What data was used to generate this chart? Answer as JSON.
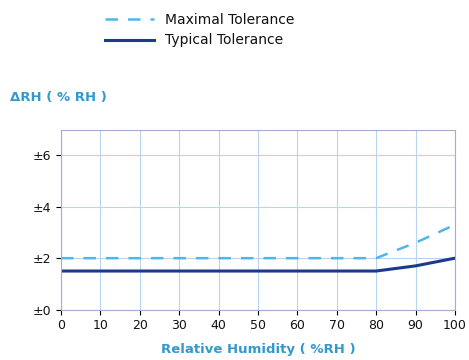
{
  "xlabel": "Relative Humidity ( %RH )",
  "ylabel": "ΔRH ( % RH )",
  "xlim": [
    0,
    100
  ],
  "ylim": [
    0,
    7
  ],
  "xticks": [
    0,
    10,
    20,
    30,
    40,
    50,
    60,
    70,
    80,
    90,
    100
  ],
  "yticks": [
    0,
    2,
    4,
    6
  ],
  "ytick_labels": [
    "±0",
    "±2",
    "±4",
    "±6"
  ],
  "xtick_labels": [
    "0",
    "10",
    "20",
    "30",
    "40",
    "50",
    "60",
    "70",
    "80",
    "90",
    "100"
  ],
  "maximal_x": [
    0,
    80,
    85,
    90,
    95,
    100
  ],
  "maximal_y": [
    2.0,
    2.0,
    2.3,
    2.6,
    2.95,
    3.3
  ],
  "typical_x": [
    0,
    80,
    85,
    90,
    95,
    100
  ],
  "typical_y": [
    1.5,
    1.5,
    1.6,
    1.7,
    1.85,
    2.0
  ],
  "maximal_color": "#4db8e8",
  "typical_color": "#1a3a8c",
  "maximal_label": "Maximal Tolerance",
  "typical_label": "Typical Tolerance",
  "grid_color": "#b8d4ee",
  "axis_label_color": "#3399cc",
  "tick_label_color": "#111111",
  "bg_color": "#ffffff",
  "legend_fontsize": 10,
  "axis_label_fontsize": 9.5,
  "tick_fontsize": 9,
  "ylabel_fontsize": 9.5
}
